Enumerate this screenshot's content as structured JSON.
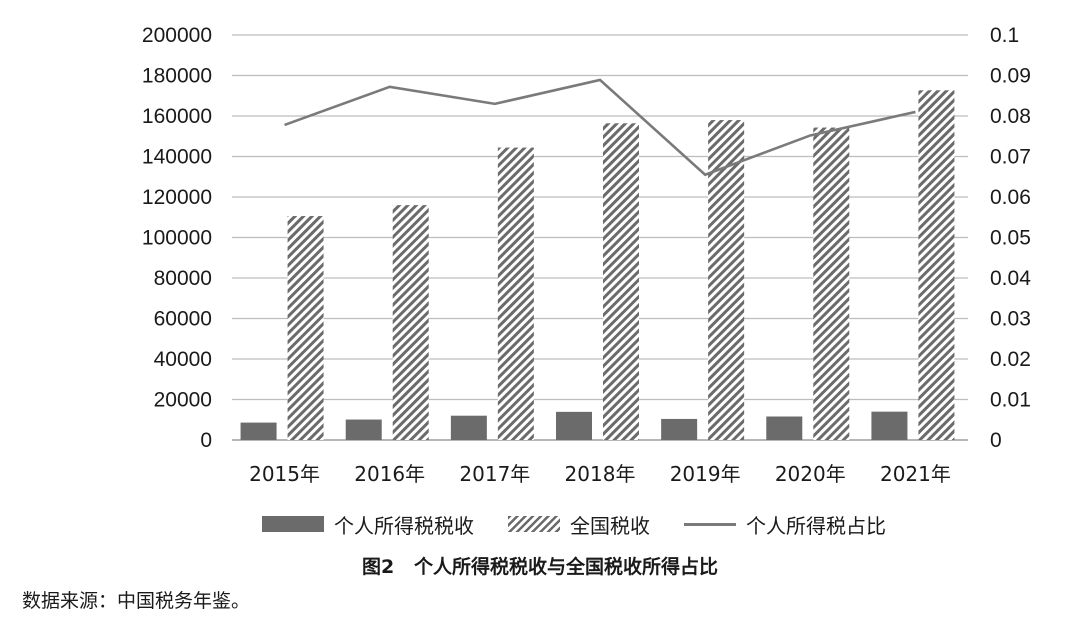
{
  "chart_data": {
    "type": "bar",
    "categories": [
      "2015年",
      "2016年",
      "2017年",
      "2018年",
      "2019年",
      "2020年",
      "2021年"
    ],
    "series": [
      {
        "name": "个人所得税税收",
        "type": "bar",
        "axis": "left",
        "style": "solid",
        "color": "#6b6b6b",
        "values": [
          8600,
          10100,
          12000,
          13900,
          10400,
          11600,
          14000
        ]
      },
      {
        "name": "全国税收",
        "type": "bar",
        "axis": "left",
        "style": "hatched",
        "color": "#6b6b6b",
        "values": [
          110600,
          116000,
          144400,
          156400,
          158000,
          154300,
          172700
        ]
      },
      {
        "name": "个人所得税占比",
        "type": "line",
        "axis": "right",
        "color": "#7a7a7a",
        "values": [
          0.0778,
          0.0872,
          0.083,
          0.0889,
          0.0655,
          0.0752,
          0.081
        ]
      }
    ],
    "y_left": {
      "ylim": [
        0,
        200000
      ],
      "ticks": [
        "0",
        "20000",
        "40000",
        "60000",
        "80000",
        "100000",
        "120000",
        "140000",
        "160000",
        "180000",
        "200000"
      ]
    },
    "y_right": {
      "ylim": [
        0,
        0.1
      ],
      "ticks": [
        "0",
        "0.01",
        "0.02",
        "0.03",
        "0.04",
        "0.05",
        "0.06",
        "0.07",
        "0.08",
        "0.09",
        "0.1"
      ]
    },
    "grid": true,
    "legend": "bottom",
    "title": "图2",
    "subtitle": "个人所得税税收与全国税收所得占比"
  },
  "legend": {
    "items": [
      "个人所得税税收",
      "全国税收",
      "个人所得税占比"
    ]
  },
  "caption": {
    "number": "图2",
    "text": "个人所得税税收与全国税收所得占比"
  },
  "source": "数据来源：中国税务年鉴。"
}
